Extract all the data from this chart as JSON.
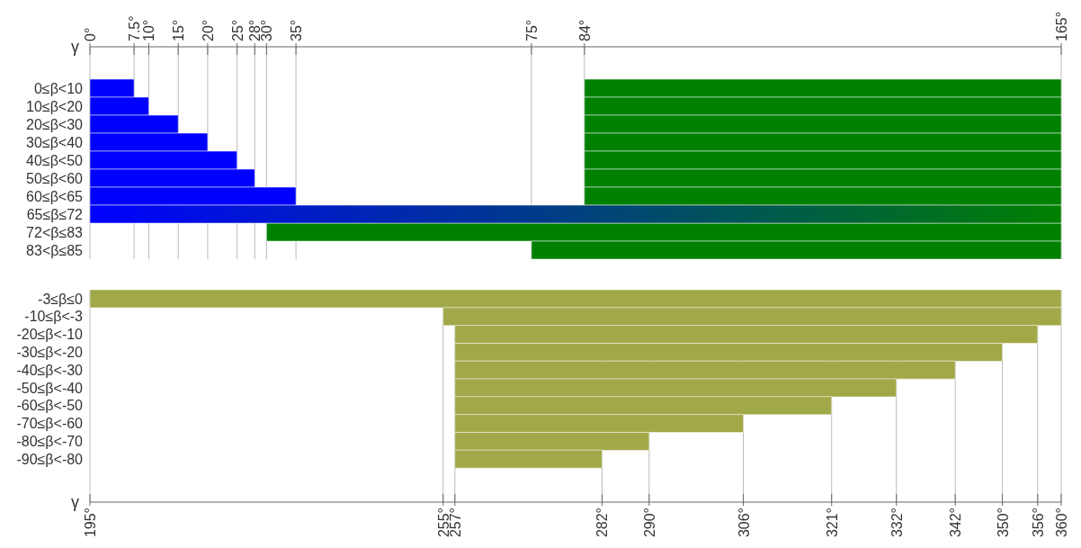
{
  "chart_data": [
    {
      "type": "bar",
      "orientation": "horizontal",
      "x2label": "γ",
      "x2lim": [
        0,
        165
      ],
      "grid": "x",
      "x2ticks": [
        {
          "value": 0,
          "label": "0°"
        },
        {
          "value": 7.5,
          "label": "7.5°"
        },
        {
          "value": 10,
          "label": "10°"
        },
        {
          "value": 15,
          "label": "15°"
        },
        {
          "value": 20,
          "label": "20°"
        },
        {
          "value": 25,
          "label": "25°"
        },
        {
          "value": 28,
          "label": "28°"
        },
        {
          "value": 30,
          "label": "30°"
        },
        {
          "value": 35,
          "label": "35°"
        },
        {
          "value": 75,
          "label": "75°"
        },
        {
          "value": 84,
          "label": "84°"
        },
        {
          "value": 165,
          "label": "165°"
        }
      ],
      "categories": [
        "0≤β<10",
        "10≤β<20",
        "20≤β<30",
        "30≤β<40",
        "40≤β<50",
        "50≤β<60",
        "60≤β<65",
        "65≤β≤72",
        "72<β≤83",
        "83<β≤85"
      ],
      "series": [
        {
          "axis": "x2",
          "color": "#0000ff",
          "base": [
            0,
            0,
            0,
            0,
            0,
            0,
            0,
            null,
            null,
            null
          ],
          "values": [
            7.5,
            10,
            15,
            20,
            25,
            28,
            35,
            null,
            null,
            null
          ]
        },
        {
          "axis": "x2",
          "color": "#008000",
          "base": [
            84,
            84,
            84,
            84,
            84,
            84,
            84,
            null,
            30,
            75
          ],
          "values": [
            81,
            81,
            81,
            81,
            81,
            81,
            81,
            null,
            135,
            90
          ]
        },
        {
          "axis": "x2",
          "base": [
            null,
            null,
            null,
            null,
            null,
            null,
            null,
            0,
            null,
            null
          ],
          "values": [
            null,
            null,
            null,
            null,
            null,
            null,
            null,
            165,
            null,
            null
          ]
        }
      ]
    },
    {
      "type": "bar",
      "orientation": "horizontal",
      "xlabel": "γ",
      "xlim": [
        195,
        360
      ],
      "grid": "x",
      "xticks": [
        {
          "value": 195,
          "label": "195°"
        },
        {
          "value": 255,
          "label": "255°"
        },
        {
          "value": 257,
          "label": "257°"
        },
        {
          "value": 282,
          "label": "282°"
        },
        {
          "value": 290,
          "label": "290°"
        },
        {
          "value": 306,
          "label": "306°"
        },
        {
          "value": 321,
          "label": "321°"
        },
        {
          "value": 332,
          "label": "332°"
        },
        {
          "value": 342,
          "label": "342°"
        },
        {
          "value": 350,
          "label": "350°"
        },
        {
          "value": 356,
          "label": "356°"
        },
        {
          "value": 360,
          "label": "360°"
        }
      ],
      "categories": [
        "-3≤β≤0",
        "-10≤β<-3",
        "-20≤β<-10",
        "-30≤β<-20",
        "-40≤β<-30",
        "-50≤β<-40",
        "-60≤β<-50",
        "-70≤β<-60",
        "-80≤β<-70",
        "-90≤β<-80"
      ],
      "series": [
        {
          "color": "#a0a848",
          "base": [
            195,
            255,
            257,
            257,
            257,
            257,
            257,
            257,
            257,
            257
          ],
          "values": [
            165,
            105,
            99,
            93,
            85,
            75,
            64,
            49,
            33,
            25
          ]
        }
      ]
    }
  ]
}
